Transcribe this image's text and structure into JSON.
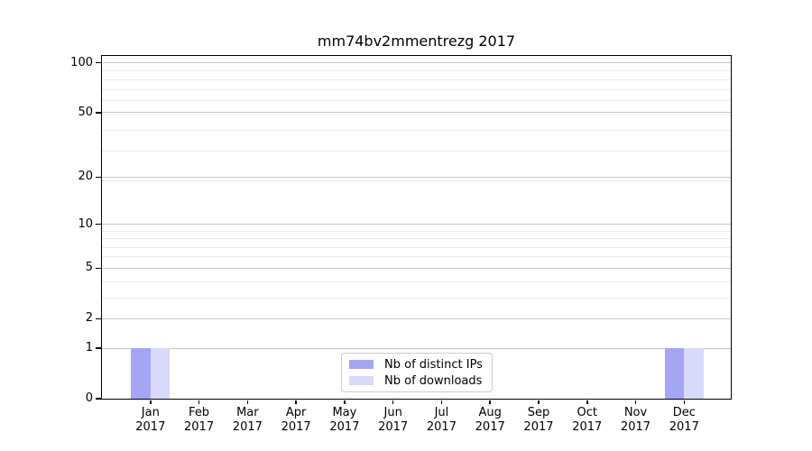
{
  "chart_data": {
    "type": "bar",
    "title": "mm74bv2mmentrezg 2017",
    "categories": [
      "Jan",
      "Feb",
      "Mar",
      "Apr",
      "May",
      "Jun",
      "Jul",
      "Aug",
      "Sep",
      "Oct",
      "Nov",
      "Dec"
    ],
    "category_year": "2017",
    "series": [
      {
        "name": "Nb of distinct IPs",
        "color": "#a5a5f5",
        "values": [
          1,
          0,
          0,
          0,
          0,
          0,
          0,
          0,
          0,
          0,
          0,
          1
        ]
      },
      {
        "name": "Nb of downloads",
        "color": "#d9d9fa",
        "values": [
          1,
          0,
          0,
          0,
          0,
          0,
          0,
          0,
          0,
          0,
          0,
          1
        ]
      }
    ],
    "xlabel": "",
    "ylabel": "",
    "yscale": "log1p",
    "ylim": [
      0,
      110
    ],
    "y_major_ticks": [
      0,
      1,
      2,
      5,
      10,
      20,
      50,
      100
    ],
    "y_minor_ticks": [
      3,
      4,
      6,
      7,
      8,
      9,
      19,
      29,
      39,
      49,
      59,
      69,
      79,
      89
    ],
    "grid": "both",
    "legend_position": "lower center"
  },
  "colors": {
    "major_grid": "#c6c6c6",
    "minor_grid": "#ebebeb",
    "axis": "#000000",
    "background": "#ffffff"
  }
}
